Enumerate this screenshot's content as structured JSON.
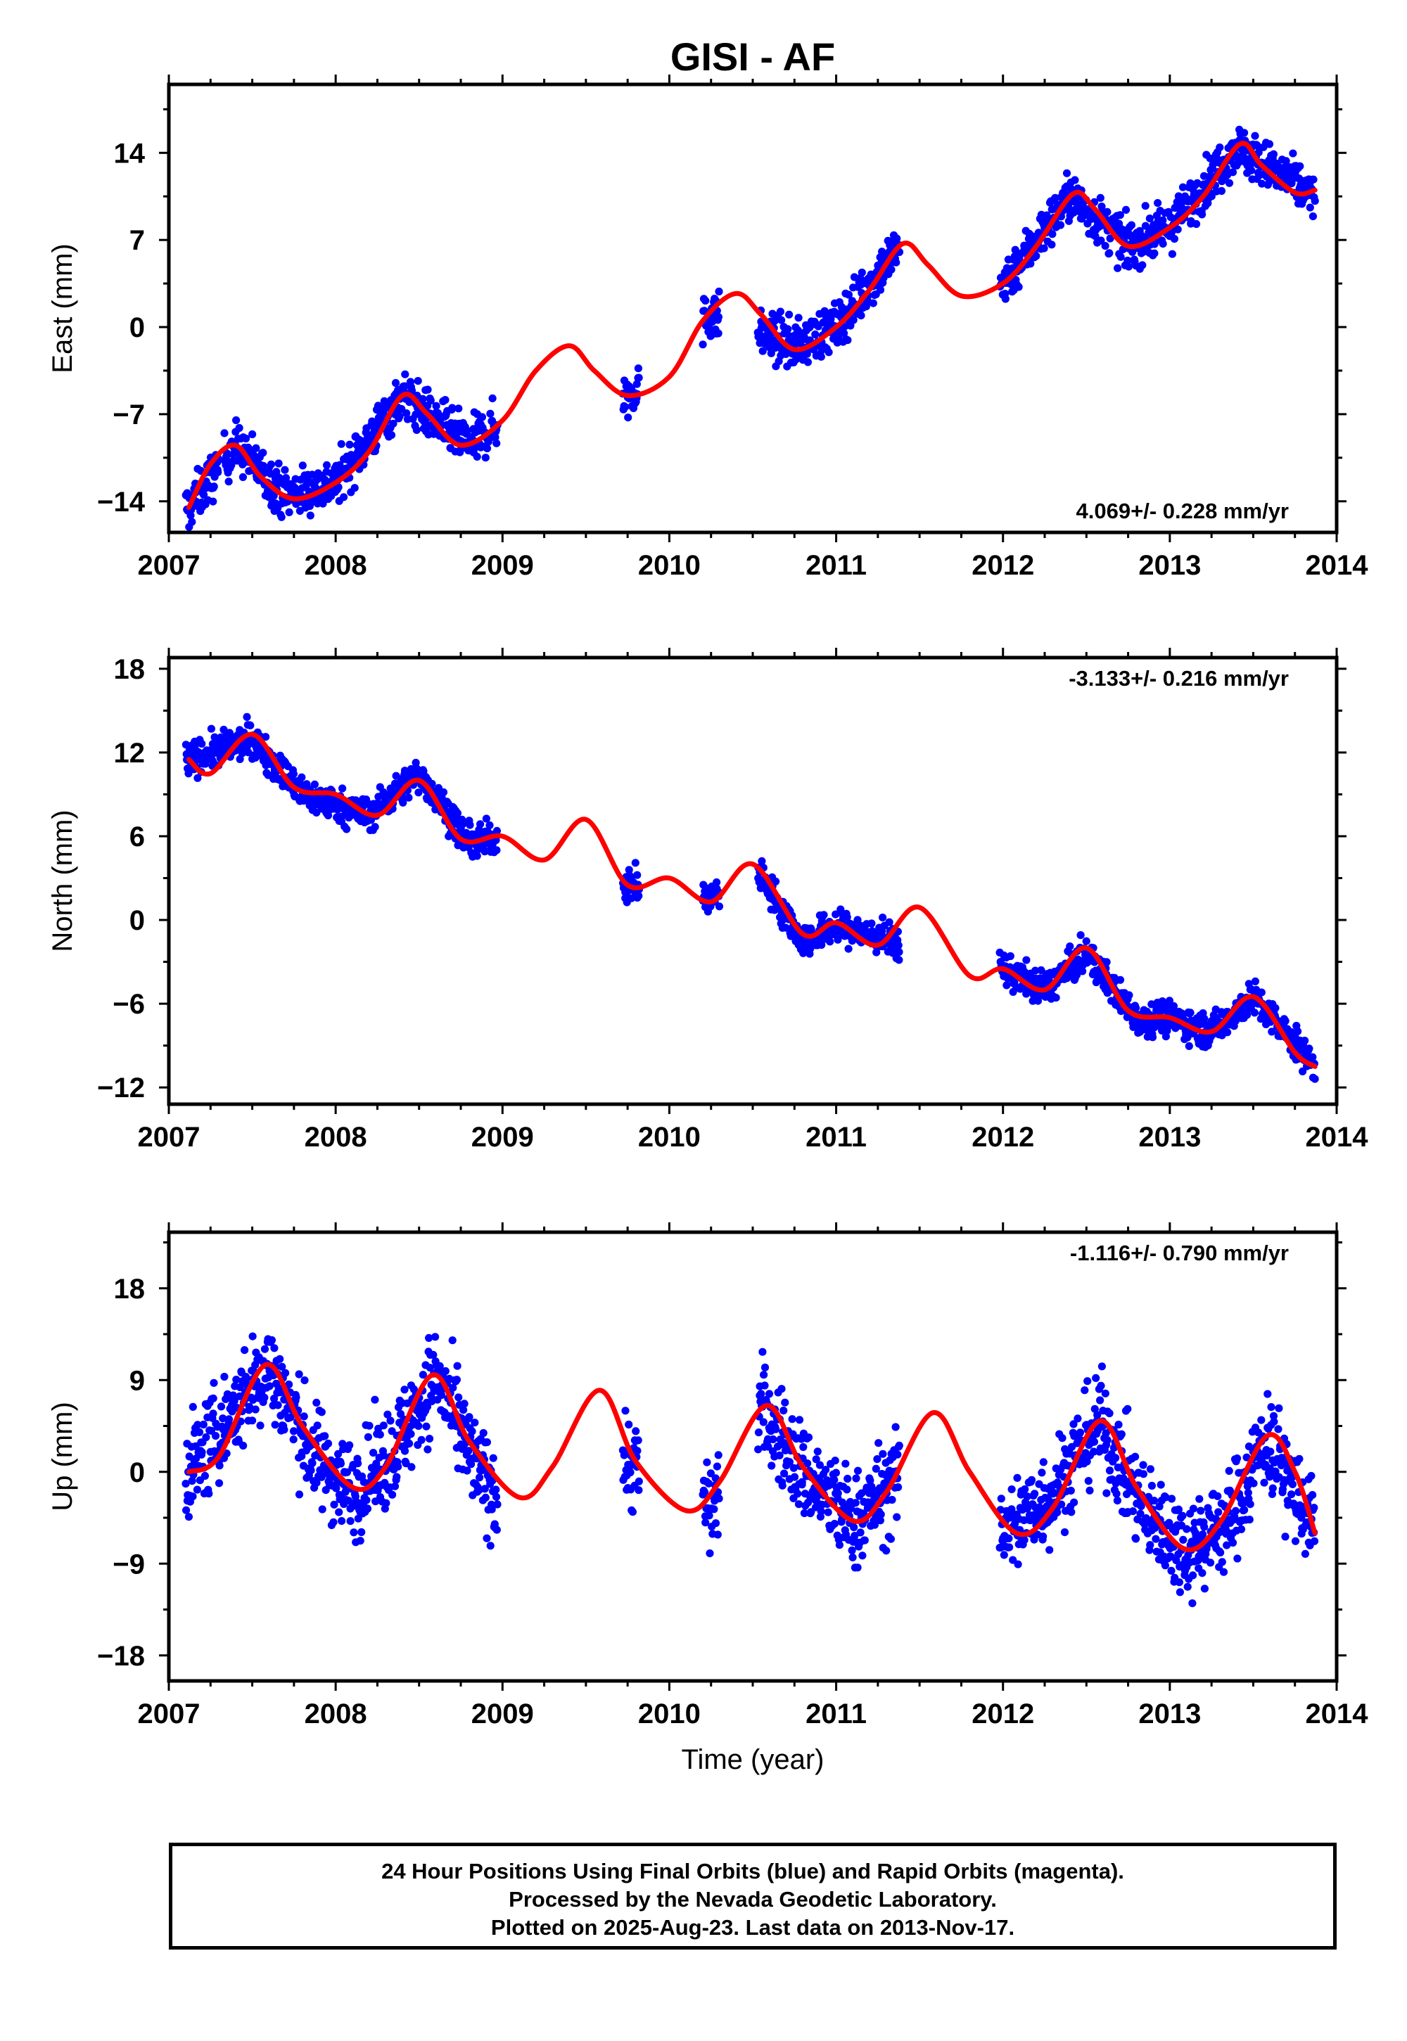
{
  "title": "GISI - AF",
  "colors": {
    "points": "#0000ff",
    "model": "#ff0000",
    "frame": "#000000"
  },
  "x_tick_labels": [
    "2007",
    "2008",
    "2009",
    "2010",
    "2011",
    "2012",
    "2013",
    "2014"
  ],
  "xlabel": "Time (year)",
  "footer": {
    "line1": "24 Hour Positions Using Final Orbits (blue) and Rapid Orbits (magenta).",
    "line2": "Processed by the Nevada Geodetic Laboratory.",
    "line3": "Plotted on 2025-Aug-23. Last data on 2013-Nov-17."
  },
  "chart_data": [
    {
      "type": "scatter",
      "ylabel": "East (mm)",
      "rate_text": "4.069+/- 0.228 mm/yr",
      "rate_position": "bottom-right",
      "xlim": [
        2007.0,
        2014.0
      ],
      "ylim": [
        -16.5,
        19.5
      ],
      "yticks": [
        -14,
        -7,
        0,
        7,
        14
      ],
      "ytick_labels": [
        "−14",
        "−7",
        "0",
        "7",
        "14"
      ],
      "data_spans": [
        [
          2007.1,
          2007.3
        ],
        [
          2007.33,
          2008.97
        ],
        [
          2009.72,
          2009.82
        ],
        [
          2010.2,
          2010.3
        ],
        [
          2010.53,
          2011.38
        ],
        [
          2011.98,
          2013.87
        ]
      ],
      "series": [
        {
          "name": "Daily positions",
          "kind": "points",
          "trend": [
            [
              2007.12,
              -14.5
            ],
            [
              2007.4,
              -9.5
            ],
            [
              2007.7,
              -13.5
            ],
            [
              2008.0,
              -12.5
            ],
            [
              2008.4,
              -5.5
            ],
            [
              2008.8,
              -9.5
            ],
            [
              2009.0,
              -7.5
            ],
            [
              2009.75,
              -5.5
            ],
            [
              2010.25,
              1.0
            ],
            [
              2010.75,
              -1.5
            ],
            [
              2011.0,
              0.0
            ],
            [
              2011.35,
              6.0
            ],
            [
              2012.0,
              3.5
            ],
            [
              2012.4,
              10.5
            ],
            [
              2012.75,
              6.5
            ],
            [
              2013.0,
              8.0
            ],
            [
              2013.4,
              14.5
            ],
            [
              2013.87,
              10.5
            ]
          ],
          "scatter_mm": 1.6
        },
        {
          "name": "Model fit",
          "kind": "line",
          "points": [
            [
              2007.12,
              -14.5
            ],
            [
              2007.25,
              -11.0
            ],
            [
              2007.4,
              -9.5
            ],
            [
              2007.55,
              -12.0
            ],
            [
              2007.75,
              -13.8
            ],
            [
              2008.0,
              -12.5
            ],
            [
              2008.2,
              -10.0
            ],
            [
              2008.4,
              -5.5
            ],
            [
              2008.55,
              -7.0
            ],
            [
              2008.75,
              -9.5
            ],
            [
              2009.0,
              -7.5
            ],
            [
              2009.2,
              -3.5
            ],
            [
              2009.4,
              -1.5
            ],
            [
              2009.55,
              -3.5
            ],
            [
              2009.75,
              -5.5
            ],
            [
              2010.0,
              -4.0
            ],
            [
              2010.2,
              0.5
            ],
            [
              2010.4,
              2.7
            ],
            [
              2010.55,
              1.0
            ],
            [
              2010.75,
              -1.8
            ],
            [
              2011.0,
              0.0
            ],
            [
              2011.2,
              3.0
            ],
            [
              2011.4,
              6.7
            ],
            [
              2011.55,
              5.0
            ],
            [
              2011.75,
              2.5
            ],
            [
              2012.0,
              3.5
            ],
            [
              2012.2,
              6.5
            ],
            [
              2012.42,
              10.7
            ],
            [
              2012.55,
              9.5
            ],
            [
              2012.75,
              6.5
            ],
            [
              2013.0,
              8.0
            ],
            [
              2013.2,
              10.5
            ],
            [
              2013.42,
              14.7
            ],
            [
              2013.55,
              13.0
            ],
            [
              2013.75,
              10.8
            ],
            [
              2013.87,
              11.0
            ]
          ]
        }
      ]
    },
    {
      "type": "scatter",
      "ylabel": "North (mm)",
      "rate_text": "-3.133+/- 0.216 mm/yr",
      "rate_position": "top-right",
      "xlim": [
        2007.0,
        2014.0
      ],
      "ylim": [
        -13.2,
        18.8
      ],
      "yticks": [
        -12,
        -6,
        0,
        6,
        12,
        18
      ],
      "ytick_labels": [
        "−12",
        "−6",
        "0",
        "6",
        "12",
        "18"
      ],
      "data_spans": [
        [
          2007.1,
          2008.97
        ],
        [
          2009.72,
          2009.82
        ],
        [
          2010.2,
          2010.3
        ],
        [
          2010.53,
          2011.38
        ],
        [
          2011.98,
          2013.87
        ]
      ],
      "series": [
        {
          "name": "Daily positions",
          "kind": "points",
          "trend": [
            [
              2007.12,
              11.5
            ],
            [
              2007.5,
              13.0
            ],
            [
              2007.8,
              9.0
            ],
            [
              2008.2,
              7.5
            ],
            [
              2008.5,
              10.5
            ],
            [
              2008.8,
              5.5
            ],
            [
              2009.0,
              6.0
            ],
            [
              2009.75,
              2.5
            ],
            [
              2010.25,
              1.5
            ],
            [
              2010.5,
              4.0
            ],
            [
              2010.8,
              -1.5
            ],
            [
              2011.0,
              -0.5
            ],
            [
              2011.35,
              -1.5
            ],
            [
              2012.0,
              -3.5
            ],
            [
              2012.25,
              -5.0
            ],
            [
              2012.5,
              -2.5
            ],
            [
              2012.8,
              -7.0
            ],
            [
              2013.0,
              -7.0
            ],
            [
              2013.25,
              -8.0
            ],
            [
              2013.5,
              -5.5
            ],
            [
              2013.87,
              -10.5
            ]
          ],
          "scatter_mm": 1.0
        },
        {
          "name": "Model fit",
          "kind": "line",
          "points": [
            [
              2007.12,
              11.5
            ],
            [
              2007.25,
              10.5
            ],
            [
              2007.5,
              13.3
            ],
            [
              2007.75,
              9.5
            ],
            [
              2008.0,
              9.0
            ],
            [
              2008.25,
              7.5
            ],
            [
              2008.5,
              10.0
            ],
            [
              2008.75,
              5.8
            ],
            [
              2009.0,
              6.0
            ],
            [
              2009.25,
              4.3
            ],
            [
              2009.5,
              7.2
            ],
            [
              2009.75,
              2.5
            ],
            [
              2010.0,
              3.0
            ],
            [
              2010.25,
              1.3
            ],
            [
              2010.5,
              4.0
            ],
            [
              2010.8,
              -1.0
            ],
            [
              2011.0,
              -0.2
            ],
            [
              2011.25,
              -1.8
            ],
            [
              2011.5,
              0.9
            ],
            [
              2011.8,
              -4.0
            ],
            [
              2012.0,
              -3.5
            ],
            [
              2012.25,
              -5.0
            ],
            [
              2012.5,
              -2.0
            ],
            [
              2012.75,
              -6.5
            ],
            [
              2013.0,
              -7.0
            ],
            [
              2013.25,
              -8.0
            ],
            [
              2013.5,
              -5.5
            ],
            [
              2013.75,
              -9.5
            ],
            [
              2013.87,
              -10.5
            ]
          ]
        }
      ]
    },
    {
      "type": "scatter",
      "ylabel": "Up (mm)",
      "rate_text": "-1.116+/- 0.790 mm/yr",
      "rate_position": "top-right",
      "xlim": [
        2007.0,
        2014.0
      ],
      "ylim": [
        -20.5,
        23.5
      ],
      "yticks": [
        -18,
        -9,
        0,
        9,
        18
      ],
      "ytick_labels": [
        "−18",
        "−9",
        "0",
        "9",
        "18"
      ],
      "data_spans": [
        [
          2007.1,
          2008.97
        ],
        [
          2009.72,
          2009.82
        ],
        [
          2010.2,
          2010.3
        ],
        [
          2010.53,
          2011.38
        ],
        [
          2011.98,
          2013.87
        ]
      ],
      "series": [
        {
          "name": "Daily positions",
          "kind": "points",
          "trend": [
            [
              2007.12,
              0.0
            ],
            [
              2007.35,
              5.0
            ],
            [
              2007.6,
              10.5
            ],
            [
              2007.85,
              2.0
            ],
            [
              2008.1,
              -2.0
            ],
            [
              2008.35,
              2.0
            ],
            [
              2008.6,
              9.5
            ],
            [
              2008.85,
              0.0
            ],
            [
              2009.0,
              -2.5
            ],
            [
              2009.75,
              1.0
            ],
            [
              2010.25,
              -3.5
            ],
            [
              2010.55,
              6.5
            ],
            [
              2010.8,
              0.0
            ],
            [
              2011.1,
              -5.0
            ],
            [
              2011.35,
              -1.0
            ],
            [
              2012.05,
              -5.5
            ],
            [
              2012.3,
              -2.0
            ],
            [
              2012.58,
              5.0
            ],
            [
              2012.85,
              -4.0
            ],
            [
              2013.1,
              -7.5
            ],
            [
              2013.35,
              -5.0
            ],
            [
              2013.58,
              3.5
            ],
            [
              2013.87,
              -6.0
            ]
          ],
          "scatter_mm": 4.0
        },
        {
          "name": "Model fit",
          "kind": "line",
          "points": [
            [
              2007.12,
              0.0
            ],
            [
              2007.3,
              1.5
            ],
            [
              2007.58,
              10.5
            ],
            [
              2007.8,
              4.5
            ],
            [
              2008.1,
              -1.5
            ],
            [
              2008.3,
              0.5
            ],
            [
              2008.58,
              9.5
            ],
            [
              2008.8,
              3.0
            ],
            [
              2009.1,
              -2.5
            ],
            [
              2009.3,
              0.5
            ],
            [
              2009.58,
              8.0
            ],
            [
              2009.8,
              1.0
            ],
            [
              2010.1,
              -3.8
            ],
            [
              2010.3,
              -1.0
            ],
            [
              2010.58,
              6.5
            ],
            [
              2010.8,
              0.5
            ],
            [
              2011.1,
              -4.8
            ],
            [
              2011.3,
              -2.0
            ],
            [
              2011.58,
              5.8
            ],
            [
              2011.8,
              0.0
            ],
            [
              2012.08,
              -6.0
            ],
            [
              2012.3,
              -3.5
            ],
            [
              2012.58,
              5.0
            ],
            [
              2012.8,
              -1.5
            ],
            [
              2013.08,
              -7.5
            ],
            [
              2013.3,
              -5.0
            ],
            [
              2013.58,
              3.5
            ],
            [
              2013.75,
              0.0
            ],
            [
              2013.87,
              -6.0
            ]
          ]
        }
      ]
    }
  ]
}
